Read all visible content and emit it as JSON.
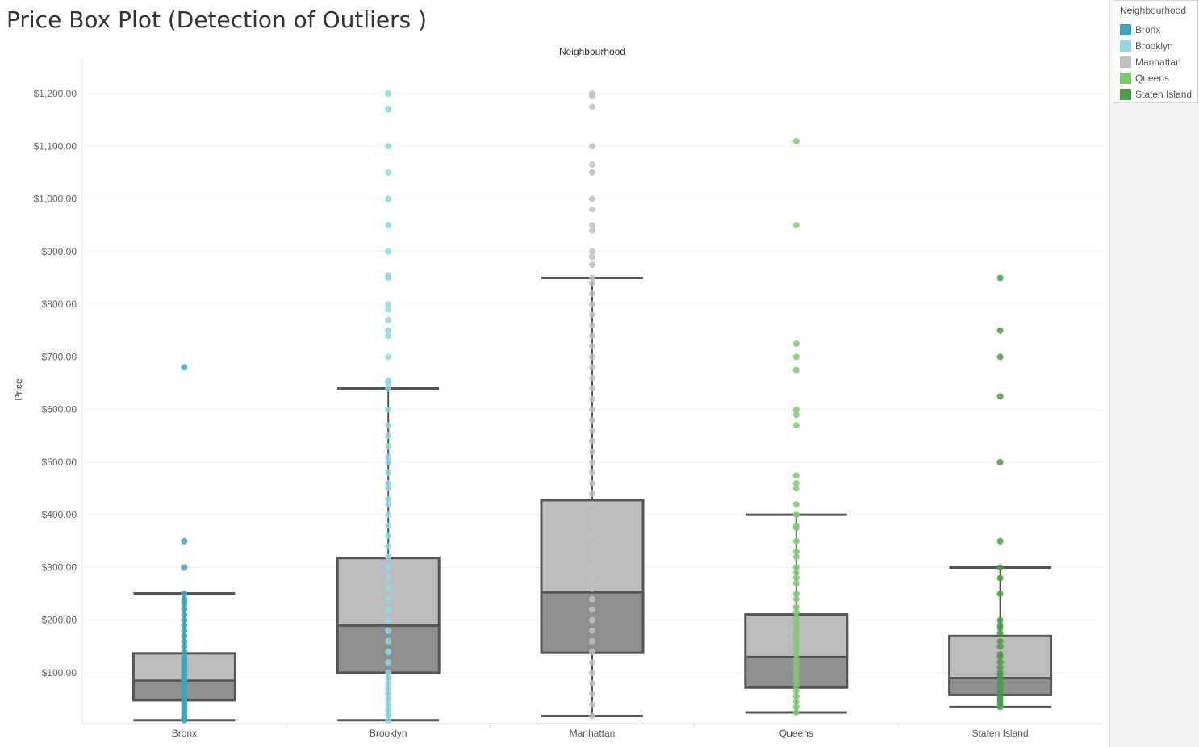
{
  "title": "Price Box Plot (Detection of Outliers )",
  "legend": {
    "title": "Neighbourhood",
    "items": [
      {
        "label": "Bronx",
        "color": "#3ba6b9"
      },
      {
        "label": "Brooklyn",
        "color": "#94d5e0"
      },
      {
        "label": "Manhattan",
        "color": "#bfbfbf"
      },
      {
        "label": "Queens",
        "color": "#7cc96e"
      },
      {
        "label": "Staten Island",
        "color": "#4e9a4a"
      }
    ]
  },
  "chart_data": {
    "type": "box",
    "column_header": "Neighbourhood",
    "ylabel": "Price",
    "ylim": [
      0,
      1200
    ],
    "yticks": [
      100,
      200,
      300,
      400,
      500,
      600,
      700,
      800,
      900,
      1000,
      1100,
      1200
    ],
    "ytick_labels": [
      "$100.00",
      "$200.00",
      "$300.00",
      "$400.00",
      "$500.00",
      "$600.00",
      "$700.00",
      "$800.00",
      "$900.00",
      "$1,000.00",
      "$1,100.00",
      "$1,200.00"
    ],
    "grid": true,
    "categories": [
      "Bronx",
      "Brooklyn",
      "Manhattan",
      "Queens",
      "Staten Island"
    ],
    "boxes": [
      {
        "name": "Bronx",
        "color": "#3ba6b9",
        "whisker_low": 10,
        "q1": 48,
        "median": 85,
        "q3": 137,
        "whisker_high": 251,
        "points": [
          10,
          15,
          20,
          25,
          30,
          35,
          40,
          45,
          50,
          55,
          60,
          65,
          70,
          75,
          80,
          85,
          90,
          95,
          100,
          105,
          110,
          115,
          120,
          125,
          130,
          140,
          150,
          160,
          170,
          180,
          190,
          200,
          210,
          220,
          230,
          235,
          240,
          250,
          300,
          350,
          680
        ]
      },
      {
        "name": "Brooklyn",
        "color": "#94d5e0",
        "whisker_low": 10,
        "q1": 100,
        "median": 190,
        "q3": 318,
        "whisker_high": 640,
        "points": [
          10,
          20,
          30,
          40,
          50,
          60,
          70,
          80,
          90,
          100,
          120,
          140,
          160,
          180,
          200,
          220,
          240,
          260,
          280,
          300,
          320,
          340,
          360,
          380,
          400,
          420,
          430,
          450,
          460,
          480,
          500,
          510,
          530,
          550,
          570,
          600,
          640,
          650,
          655,
          700,
          740,
          750,
          770,
          790,
          800,
          850,
          855,
          900,
          950,
          1000,
          1050,
          1100,
          1170,
          1200
        ]
      },
      {
        "name": "Manhattan",
        "color": "#bfbfbf",
        "whisker_low": 18,
        "q1": 138,
        "median": 253,
        "q3": 428,
        "whisker_high": 850,
        "points": [
          18,
          40,
          60,
          80,
          100,
          120,
          140,
          160,
          180,
          200,
          220,
          240,
          260,
          280,
          300,
          320,
          340,
          360,
          380,
          400,
          420,
          440,
          460,
          480,
          500,
          520,
          540,
          560,
          580,
          600,
          620,
          640,
          660,
          680,
          700,
          720,
          740,
          760,
          780,
          800,
          820,
          840,
          850,
          875,
          890,
          900,
          940,
          950,
          980,
          1000,
          1050,
          1065,
          1100,
          1175,
          1195,
          1200
        ]
      },
      {
        "name": "Queens",
        "color": "#7cc96e",
        "whisker_low": 25,
        "q1": 72,
        "median": 130,
        "q3": 211,
        "whisker_high": 400,
        "points": [
          25,
          35,
          45,
          55,
          65,
          75,
          85,
          95,
          105,
          115,
          125,
          135,
          145,
          155,
          165,
          175,
          185,
          195,
          205,
          215,
          225,
          240,
          250,
          270,
          280,
          290,
          300,
          320,
          330,
          350,
          375,
          380,
          400,
          420,
          450,
          460,
          475,
          570,
          590,
          600,
          675,
          700,
          725,
          950,
          1110
        ]
      },
      {
        "name": "Staten Island",
        "color": "#4e9a4a",
        "whisker_low": 35,
        "q1": 58,
        "median": 90,
        "q3": 170,
        "whisker_high": 300,
        "points": [
          35,
          40,
          45,
          50,
          55,
          60,
          65,
          70,
          75,
          80,
          85,
          90,
          95,
          100,
          110,
          120,
          130,
          135,
          150,
          160,
          175,
          185,
          190,
          200,
          250,
          280,
          300,
          350,
          500,
          625,
          700,
          750,
          850
        ]
      }
    ]
  }
}
